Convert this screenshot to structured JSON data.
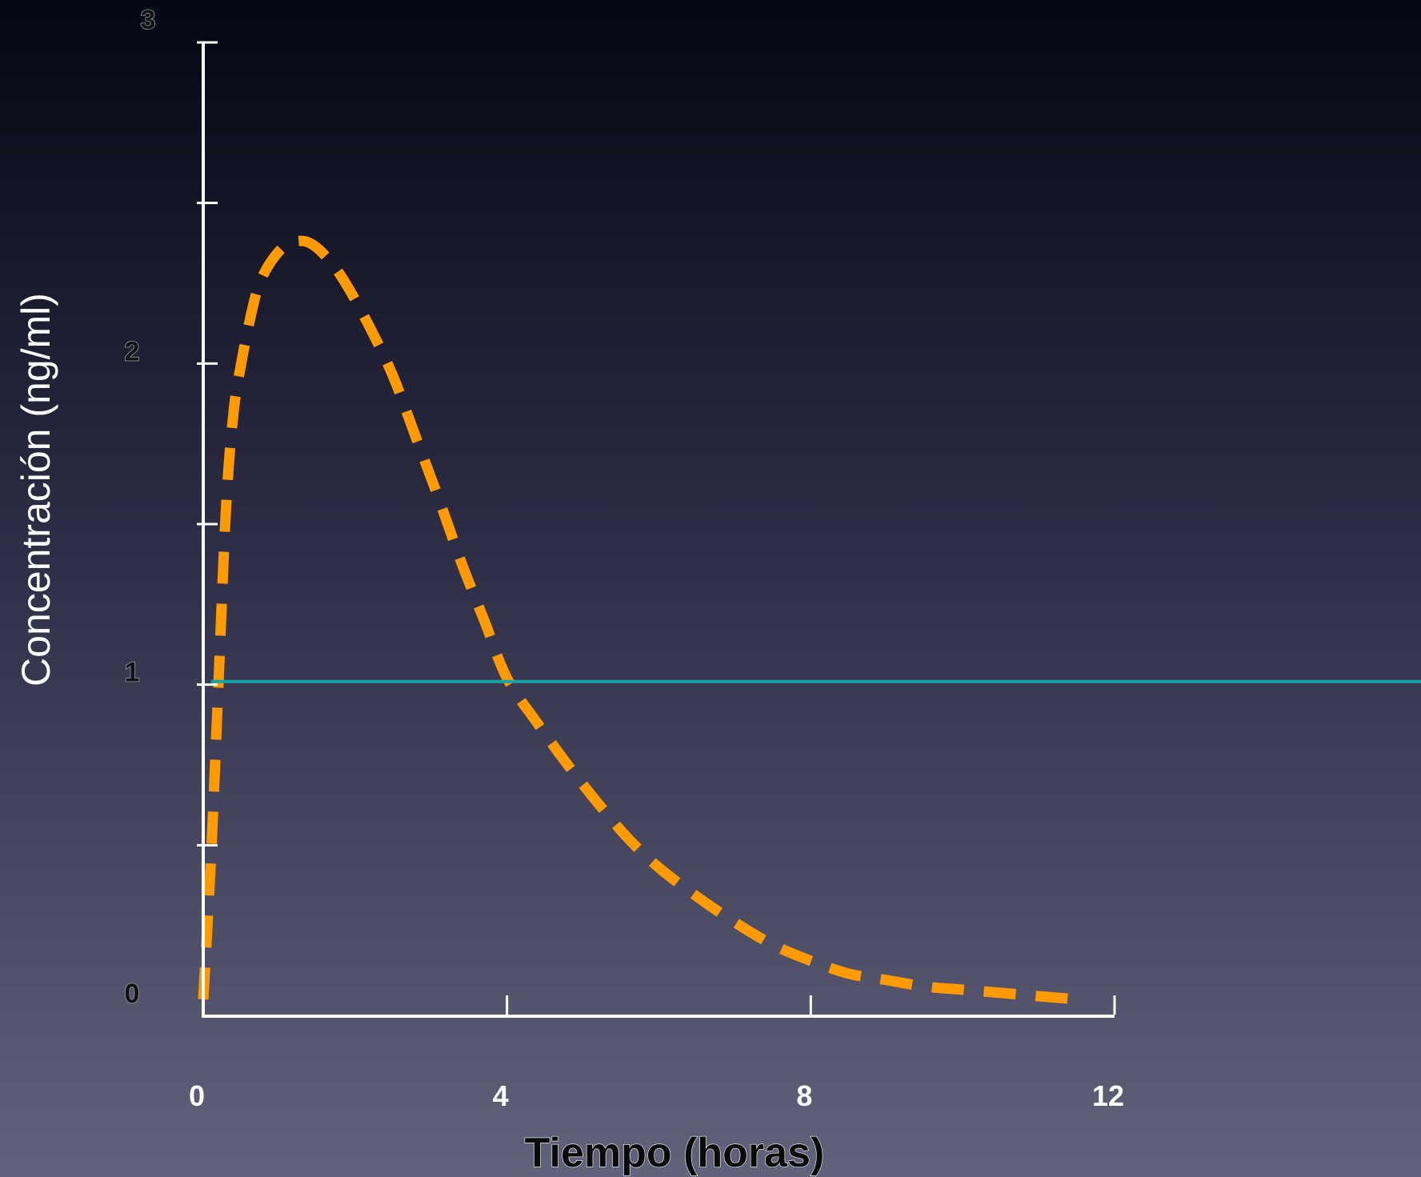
{
  "colors": {
    "background_top": "#050712",
    "background_mid": "#2c2c44",
    "background_bottom": "#62627a",
    "axis": "#ffffff",
    "curve": "#ff9a00",
    "threshold": "#15a3a3"
  },
  "chart_data": {
    "type": "line",
    "xlabel": "Tiempo (horas)",
    "ylabel": "Concentración (ng/ml)",
    "xlim": [
      0,
      12
    ],
    "ylim": [
      0,
      3
    ],
    "x_ticks": [
      0,
      4,
      8,
      12
    ],
    "x_tick_labels": [
      "0",
      "4",
      "8",
      "12"
    ],
    "y_ticks": [
      0,
      1,
      2,
      3
    ],
    "y_tick_labels": [
      "0",
      "1",
      "2",
      "3"
    ],
    "y_minor_ticks": [
      0.5,
      1.5,
      2.5
    ],
    "grid": false,
    "series": [
      {
        "style": "dashed",
        "color": "#ff9a00",
        "x": [
          0.0,
          0.1,
          0.2,
          0.3,
          0.4,
          0.5,
          0.6,
          0.7,
          0.8,
          0.9,
          1.0,
          1.1,
          1.2,
          1.35,
          1.5,
          1.7,
          1.9,
          2.2,
          2.5,
          2.8,
          3.1,
          3.4,
          3.7,
          4.0,
          4.4,
          4.8,
          5.2,
          5.6,
          6.0,
          6.5,
          7.0,
          7.5,
          8.0,
          8.5,
          9.0,
          9.5,
          10.0,
          10.5,
          11.0,
          11.5
        ],
        "y": [
          0.02,
          0.45,
          1.0,
          1.55,
          1.85,
          2.0,
          2.12,
          2.22,
          2.28,
          2.32,
          2.35,
          2.37,
          2.38,
          2.38,
          2.36,
          2.31,
          2.24,
          2.11,
          1.96,
          1.77,
          1.58,
          1.38,
          1.2,
          1.02,
          0.88,
          0.75,
          0.63,
          0.52,
          0.43,
          0.34,
          0.26,
          0.19,
          0.14,
          0.1,
          0.08,
          0.06,
          0.05,
          0.04,
          0.03,
          0.02
        ]
      },
      {
        "style": "solid",
        "color": "#15a3a3",
        "x": [
          0.1,
          16.4
        ],
        "y": [
          1.01,
          1.01
        ]
      }
    ]
  }
}
